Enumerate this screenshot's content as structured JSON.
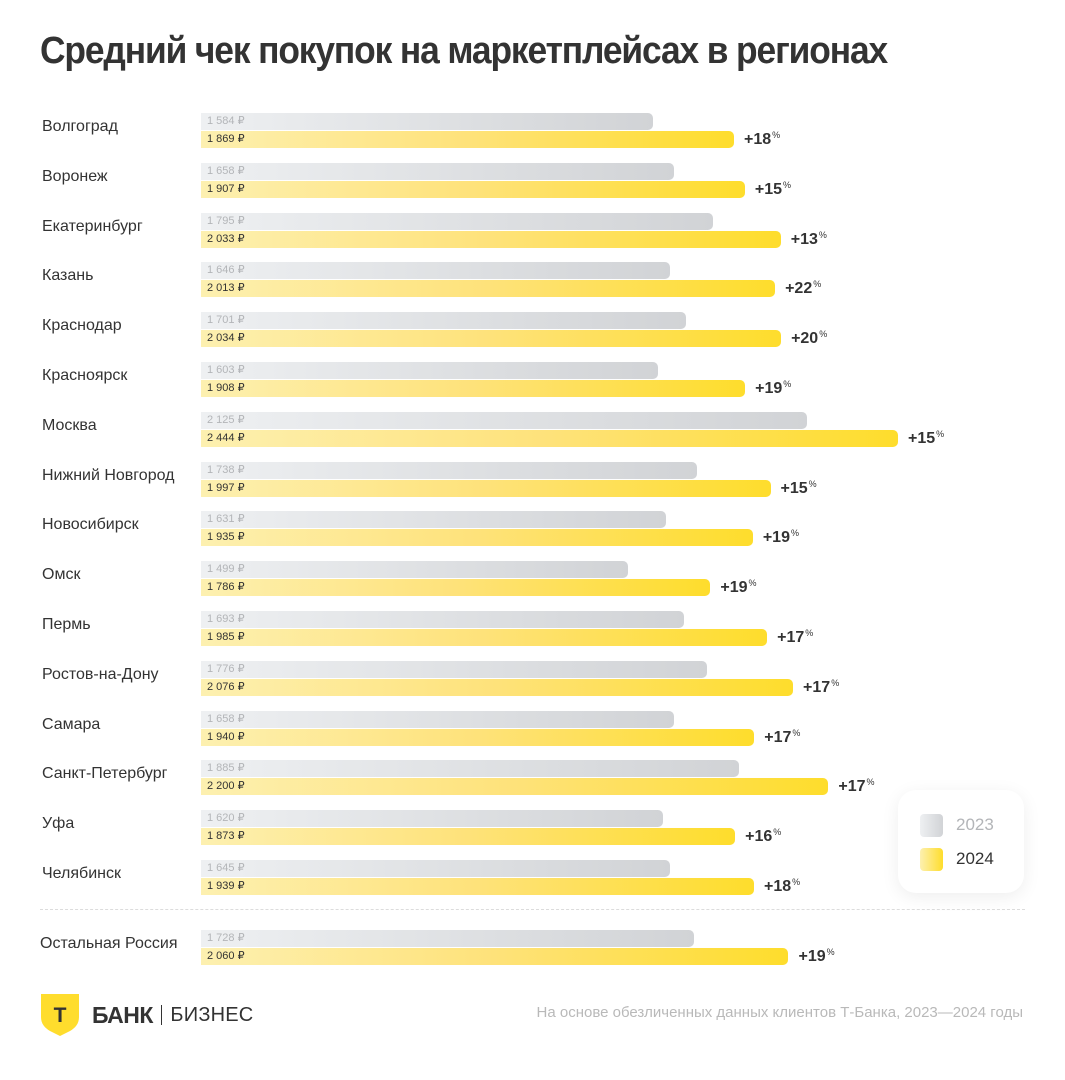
{
  "title": "Средний чек покупок на маркетплейсах в регионах",
  "colors": {
    "bar_2023": "#d1d3d6",
    "bar_2024": "#fedd2c",
    "text": "#333333",
    "muted": "#b9b9b9"
  },
  "currency_suffix": " ₽",
  "legend": [
    {
      "label": "2023",
      "color": "#d1d3d6"
    },
    {
      "label": "2024",
      "color": "#fedd2c"
    }
  ],
  "chart_data": {
    "type": "bar",
    "orientation": "horizontal",
    "title": "Средний чек покупок на маркетплейсах в регионах",
    "xlabel": "",
    "ylabel": "",
    "unit": "₽",
    "grid": false,
    "legend_position": "bottom-right",
    "xlim": [
      0,
      2444
    ],
    "categories": [
      "Волгоград",
      "Воронеж",
      "Екатеринбург",
      "Казань",
      "Краснодар",
      "Красноярск",
      "Москва",
      "Нижний Новгород",
      "Новосибирск",
      "Омск",
      "Пермь",
      "Ростов-на-Дону",
      "Самара",
      "Санкт-Петербург",
      "Уфа",
      "Челябинск",
      "Остальная Россия"
    ],
    "series": [
      {
        "name": "2023",
        "values": [
          1584,
          1658,
          1795,
          1646,
          1701,
          1603,
          2125,
          1738,
          1631,
          1499,
          1693,
          1776,
          1658,
          1885,
          1620,
          1645,
          1728
        ]
      },
      {
        "name": "2024",
        "values": [
          1869,
          1907,
          2033,
          2013,
          2034,
          1908,
          2444,
          1997,
          1935,
          1786,
          1985,
          2076,
          1940,
          2200,
          1873,
          1939,
          2060
        ]
      }
    ],
    "value_labels": {
      "2023": [
        "1 584 ₽",
        "1 658 ₽",
        "1 795 ₽",
        "1 646 ₽",
        "1 701 ₽",
        "1 603 ₽",
        "2 125 ₽",
        "1 738 ₽",
        "1 631 ₽",
        "1 499 ₽",
        "1 693 ₽",
        "1 776 ₽",
        "1 658 ₽",
        "1 885 ₽",
        "1 620 ₽",
        "1 645 ₽",
        "1 728 ₽"
      ],
      "2024": [
        "1 869 ₽",
        "1 907 ₽",
        "2 033 ₽",
        "2 013 ₽",
        "2 034 ₽",
        "1 908 ₽",
        "2 444 ₽",
        "1 997 ₽",
        "1 935 ₽",
        "1 786 ₽",
        "1 985 ₽",
        "2 076 ₽",
        "1 940 ₽",
        "2 200 ₽",
        "1 873 ₽",
        "1 939 ₽",
        "2 060 ₽"
      ]
    },
    "growth_labels": [
      "+18",
      "+15",
      "+13",
      "+22",
      "+20",
      "+19",
      "+15",
      "+15",
      "+19",
      "+19",
      "+17",
      "+17",
      "+17",
      "+17",
      "+16",
      "+18",
      "+19"
    ],
    "growth_suffix": "%",
    "separated_last_category": true
  },
  "footer": {
    "logo_main": "БАНК",
    "logo_letter": "Т",
    "logo_sub": "БИЗНЕС",
    "note": "На основе обезличенных данных клиентов Т-Банка, 2023—2024 годы"
  }
}
